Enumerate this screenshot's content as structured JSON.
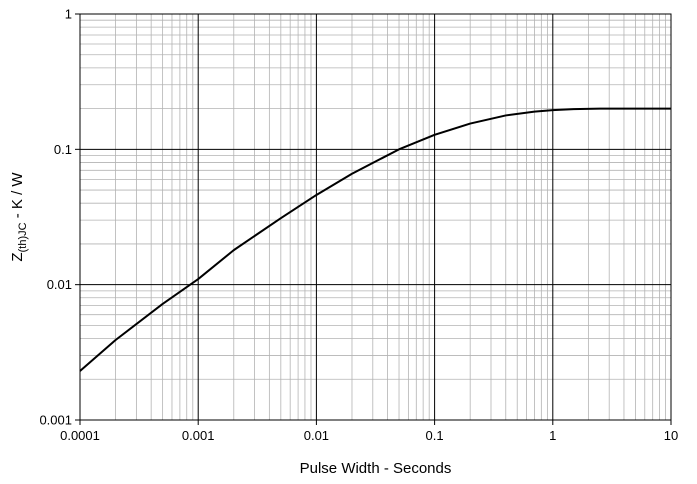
{
  "chart_data": {
    "type": "line",
    "x_scale": "log",
    "y_scale": "log",
    "xlim": [
      0.0001,
      10
    ],
    "ylim": [
      0.001,
      1
    ],
    "grid": true,
    "xlabel": "Pulse Width - Seconds",
    "ylabel_main": "Z",
    "ylabel_sub": "(th)JC",
    "ylabel_rest": " - K / W",
    "x_tick_labels": [
      "0.0001",
      "0.001",
      "0.01",
      "0.1",
      "1",
      "10"
    ],
    "y_tick_labels": [
      "0.001",
      "0.01",
      "0.1",
      "1"
    ],
    "series": [
      {
        "color": "#000000",
        "x": [
          0.0001,
          0.0002,
          0.0005,
          0.001,
          0.002,
          0.005,
          0.01,
          0.02,
          0.05,
          0.1,
          0.2,
          0.4,
          0.7,
          1,
          1.5,
          2.5,
          5,
          10
        ],
        "y": [
          0.0023,
          0.0039,
          0.0072,
          0.011,
          0.018,
          0.031,
          0.046,
          0.066,
          0.1,
          0.128,
          0.155,
          0.178,
          0.19,
          0.195,
          0.198,
          0.2,
          0.2,
          0.2
        ]
      }
    ]
  }
}
